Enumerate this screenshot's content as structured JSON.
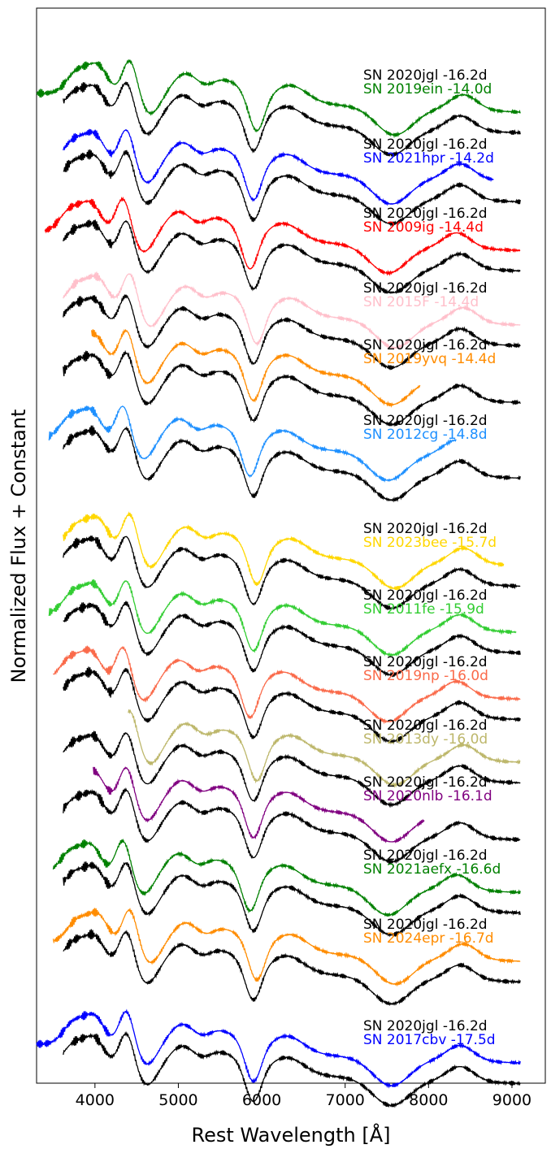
{
  "chart_data": {
    "type": "line",
    "xlabel": "Rest Wavelength [Å]",
    "ylabel": "Normalized Flux + Constant",
    "xlim": [
      3300,
      9400
    ],
    "xticks": [
      4000,
      5000,
      6000,
      7000,
      8000,
      9000
    ],
    "yticks": [],
    "grid": false,
    "reference_label": "SN 2020jgl -16.2d",
    "reference_color": "#000000",
    "pairs": [
      {
        "comparison": "SN 2019ein -14.0d",
        "color": "#008000"
      },
      {
        "comparison": "SN 2021hpr -14.2d",
        "color": "#0000ff"
      },
      {
        "comparison": "SN 2009ig -14.4d",
        "color": "#ff0000"
      },
      {
        "comparison": "SN 2015F -14.4d",
        "color": "#ffc0cb"
      },
      {
        "comparison": "SN 2019yvq -14.4d",
        "color": "#ff8c00"
      },
      {
        "comparison": "SN 2012cg -14.8d",
        "color": "#1e90ff"
      },
      {
        "comparison": "SN 2023bee -15.7d",
        "color": "#ffd700"
      },
      {
        "comparison": "SN 2011fe -15.9d",
        "color": "#32cd32"
      },
      {
        "comparison": "SN 2019np -16.0d",
        "color": "#fa6a4a"
      },
      {
        "comparison": "SN 2013dy -16.0d",
        "color": "#bdb76b"
      },
      {
        "comparison": "SN 2020nlb -16.1d",
        "color": "#800080"
      },
      {
        "comparison": "SN 2021aefx -16.6d",
        "color": "#008000"
      },
      {
        "comparison": "SN 2024epr -16.7d",
        "color": "#ff8c00"
      },
      {
        "comparison": "SN 2017cbv -17.5d",
        "color": "#0000ff"
      }
    ]
  }
}
